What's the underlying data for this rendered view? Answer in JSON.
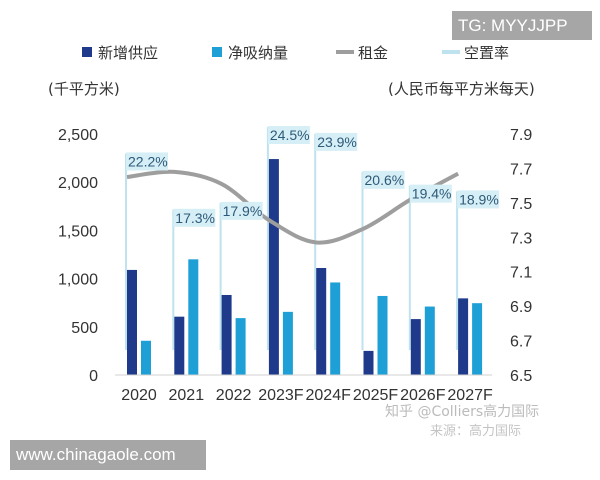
{
  "watermarks": {
    "tg": "TG: MYYJJPP",
    "site": "www.chinagaole.com",
    "zhihu": "知乎 @Colliers高力国际",
    "source": "来源：高力国际"
  },
  "chart_data": {
    "type": "bar",
    "categories": [
      "2020",
      "2021",
      "2022",
      "2023F",
      "2024F",
      "2025F",
      "2026F",
      "2027F"
    ],
    "left_axis": {
      "label": "(千平方米)",
      "range": [
        0,
        2500
      ],
      "ticks": [
        "0",
        "500",
        "1,000",
        "1,500",
        "2,000",
        "2,500"
      ]
    },
    "right_axis": {
      "label": "(人民币每平方米每天)",
      "range": [
        6.5,
        7.9
      ],
      "ticks": [
        "6.5",
        "6.7",
        "6.9",
        "7.1",
        "7.3",
        "7.5",
        "7.7",
        "7.9"
      ]
    },
    "grid": false,
    "legend_position": "top",
    "series": [
      {
        "name": "新增供应",
        "type": "bar",
        "axis": "left",
        "color": "#1f3a8a",
        "values": [
          1090,
          605,
          830,
          2240,
          1110,
          250,
          580,
          795
        ]
      },
      {
        "name": "净吸纳量",
        "type": "bar",
        "axis": "left",
        "color": "#1ea0d6",
        "values": [
          355,
          1200,
          590,
          655,
          960,
          820,
          710,
          745
        ]
      },
      {
        "name": "租金",
        "type": "line",
        "axis": "right",
        "color": "#9e9e9e",
        "values": [
          7.65,
          7.68,
          7.61,
          7.4,
          7.27,
          7.35,
          7.52,
          7.67
        ]
      },
      {
        "name": "空置率",
        "type": "label-line",
        "color": "#bfe3ee",
        "values": [
          22.2,
          17.3,
          17.9,
          24.5,
          23.9,
          20.6,
          19.4,
          18.9
        ],
        "labels": [
          "22.2%",
          "17.3%",
          "17.9%",
          "24.5%",
          "23.9%",
          "20.6%",
          "19.4%",
          "18.9%"
        ]
      }
    ]
  }
}
